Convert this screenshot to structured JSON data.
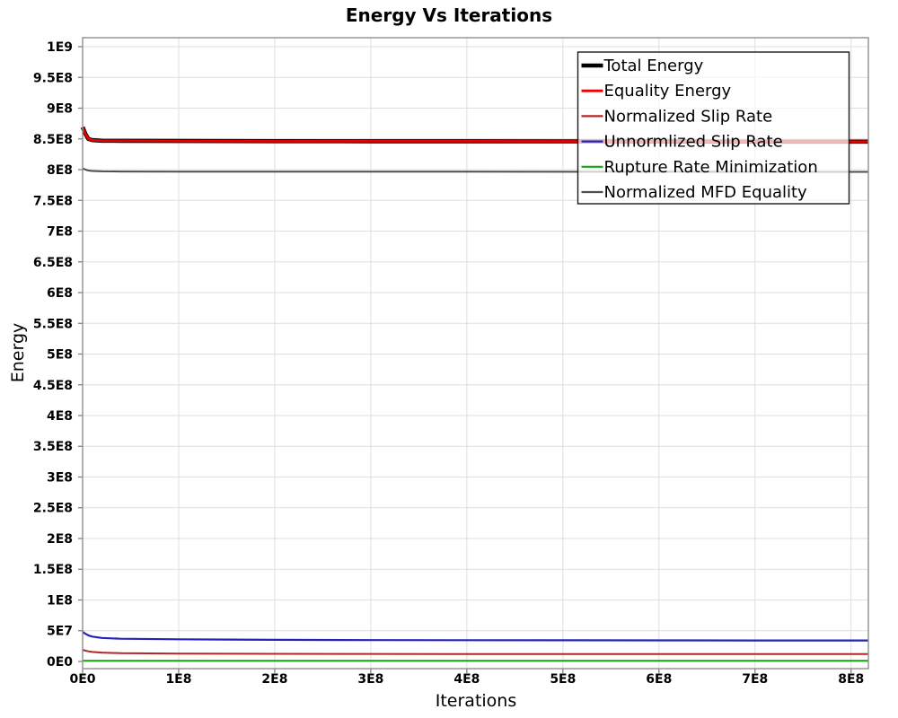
{
  "chart_data": {
    "type": "line",
    "title": "Energy Vs Iterations",
    "xlabel": "Iterations",
    "ylabel": "Energy",
    "grid": true,
    "legend_position": "top-right-inside",
    "colors": {
      "grid_line": "#dedede",
      "plot_border": "#8f8f8f",
      "tick_mark": "#777777",
      "legend_border": "#1a1a1a",
      "legend_background": "rgba(255,255,255,0.72)"
    },
    "xlim": [
      0,
      818000000.0
    ],
    "ylim": [
      -11680000.0,
      1014600000.0
    ],
    "x_ticks": [
      {
        "value": 0,
        "label": "0E0"
      },
      {
        "value": 100000000.0,
        "label": "1E8"
      },
      {
        "value": 200000000.0,
        "label": "2E8"
      },
      {
        "value": 300000000.0,
        "label": "3E8"
      },
      {
        "value": 400000000.0,
        "label": "4E8"
      },
      {
        "value": 500000000.0,
        "label": "5E8"
      },
      {
        "value": 600000000.0,
        "label": "6E8"
      },
      {
        "value": 700000000.0,
        "label": "7E8"
      },
      {
        "value": 800000000.0,
        "label": "8E8"
      }
    ],
    "y_ticks": [
      {
        "value": 0,
        "label": "0E0"
      },
      {
        "value": 50000000.0,
        "label": "5E7"
      },
      {
        "value": 100000000.0,
        "label": "1E8"
      },
      {
        "value": 150000000.0,
        "label": "1.5E8"
      },
      {
        "value": 200000000.0,
        "label": "2E8"
      },
      {
        "value": 250000000.0,
        "label": "2.5E8"
      },
      {
        "value": 300000000.0,
        "label": "3E8"
      },
      {
        "value": 350000000.0,
        "label": "3.5E8"
      },
      {
        "value": 400000000.0,
        "label": "4E8"
      },
      {
        "value": 450000000.0,
        "label": "4.5E8"
      },
      {
        "value": 500000000.0,
        "label": "5E8"
      },
      {
        "value": 550000000.0,
        "label": "5.5E8"
      },
      {
        "value": 600000000.0,
        "label": "6E8"
      },
      {
        "value": 650000000.0,
        "label": "6.5E8"
      },
      {
        "value": 700000000.0,
        "label": "7E8"
      },
      {
        "value": 750000000.0,
        "label": "7.5E8"
      },
      {
        "value": 800000000.0,
        "label": "8E8"
      },
      {
        "value": 850000000.0,
        "label": "8.5E8"
      },
      {
        "value": 900000000.0,
        "label": "9E8"
      },
      {
        "value": 950000000.0,
        "label": "9.5E8"
      },
      {
        "value": 1000000000.0,
        "label": "1E9"
      }
    ],
    "x_shared": [
      0,
      3000000.0,
      6000000.0,
      10000000.0,
      20000000.0,
      40000000.0,
      100000000.0,
      200000000.0,
      300000000.0,
      400000000.0,
      500000000.0,
      600000000.0,
      700000000.0,
      818000000.0
    ],
    "series": [
      {
        "name": "Total Energy",
        "color": "#000000",
        "line_width": 4.6,
        "y": [
          869000000.0,
          858000000.0,
          850000000.0,
          848000000.0,
          847000000.0,
          846800000.0,
          846500000.0,
          846300000.0,
          846200000.0,
          846100000.0,
          846000000.0,
          845800000.0,
          845600000.0,
          845500000.0
        ]
      },
      {
        "name": "Equality Energy",
        "color": "#e80000",
        "line_width": 2.8,
        "y": [
          869000000.0,
          858000000.0,
          850000000.0,
          848000000.0,
          847000000.0,
          846800000.0,
          846500000.0,
          846300000.0,
          846200000.0,
          846100000.0,
          846000000.0,
          845800000.0,
          845600000.0,
          845500000.0
        ]
      },
      {
        "name": "Normalized Slip Rate",
        "color": "#b42626",
        "line_width": 2,
        "y": [
          19000000.0,
          17500000.0,
          16500000.0,
          15500000.0,
          14500000.0,
          13500000.0,
          12800000.0,
          12400000.0,
          12200000.0,
          12100000.0,
          12000000.0,
          12000000.0,
          11900000.0,
          11900000.0
        ]
      },
      {
        "name": "Unnormlized Slip Rate",
        "color": "#2323bb",
        "line_width": 2.2,
        "y": [
          48000000.0,
          45000000.0,
          42500000.0,
          40500000.0,
          38300000.0,
          37000000.0,
          36000000.0,
          35200000.0,
          34800000.0,
          34600000.0,
          34400000.0,
          34300000.0,
          34200000.0,
          34100000.0
        ]
      },
      {
        "name": "Rupture Rate Minimization",
        "color": "#12a312",
        "line_width": 2,
        "y": [
          1300000.0,
          1200000.0,
          1100000.0,
          1000000.0,
          1000000.0,
          1000000.0,
          1000000.0,
          1000000.0,
          1000000.0,
          1000000.0,
          1000000.0,
          1000000.0,
          1000000.0,
          1000000.0
        ]
      },
      {
        "name": "Normalized MFD Equality",
        "color": "#4e4e4e",
        "line_width": 2,
        "y": [
          802000000.0,
          800000000.0,
          798500000.0,
          797800000.0,
          797300000.0,
          797000000.0,
          796800000.0,
          796700000.0,
          796600000.0,
          796600000.0,
          796500000.0,
          796500000.0,
          796400000.0,
          796400000.0
        ]
      }
    ]
  }
}
